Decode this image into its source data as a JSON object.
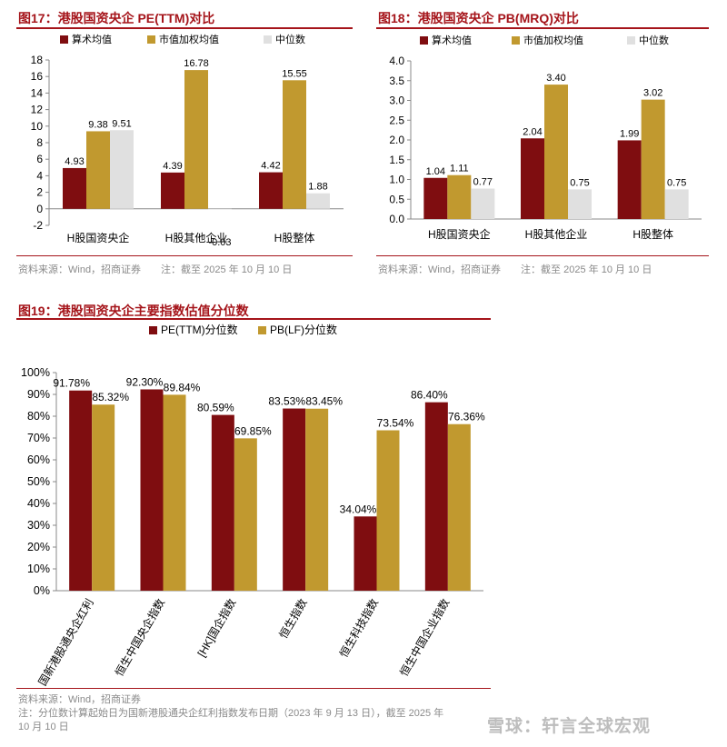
{
  "colors": {
    "accent": "#a5141a",
    "series1": "#7f0d10",
    "series2": "#c1992f",
    "series3": "#e0e0e0"
  },
  "fig17": {
    "title": "图17：港股国资央企 PE(TTM)对比",
    "source": "资料来源：Wind，招商证券　　注：截至 2025 年 10 月 10 日"
  },
  "fig18": {
    "title": "图18：港股国资央企 PB(MRQ)对比",
    "source": "资料来源：Wind，招商证券　　注：截至 2025 年 10 月 10 日"
  },
  "fig19": {
    "title": "图19：港股国资央企主要指数估值分位数",
    "source": "资料来源：Wind，招商证券",
    "note_line1": "注：分位数计算起始日为国新港股通央企红利指数发布日期（2023 年 9 月 13 日），截至 2025 年",
    "note_line2": "10 月 10 日"
  },
  "watermark": "雪球：轩言全球宏观",
  "chart_data": [
    {
      "type": "bar",
      "categories": [
        "H股国资央企",
        "H股其他企业",
        "H股整体"
      ],
      "series": [
        {
          "name": "算术均值",
          "values": [
            4.93,
            4.39,
            4.42
          ],
          "labels": [
            "4.93",
            "4.39",
            "4.42"
          ]
        },
        {
          "name": "市值加权均值",
          "values": [
            9.38,
            16.78,
            15.55
          ],
          "labels": [
            "9.38",
            "16.78",
            "15.55"
          ]
        },
        {
          "name": "中位数",
          "values": [
            9.51,
            -0.03,
            1.88
          ],
          "labels": [
            "9.51",
            "-0.03",
            "1.88"
          ]
        }
      ],
      "yticks": [
        "-2",
        "0",
        "2",
        "4",
        "6",
        "8",
        "10",
        "12",
        "14",
        "16",
        "18"
      ],
      "ylim": [
        -2,
        18
      ],
      "legend": "top",
      "grid": false
    },
    {
      "type": "bar",
      "categories": [
        "H股国资央企",
        "H股其他企业",
        "H股整体"
      ],
      "series": [
        {
          "name": "算术均值",
          "values": [
            1.04,
            2.04,
            1.99
          ],
          "labels": [
            "1.04",
            "2.04",
            "1.99"
          ]
        },
        {
          "name": "市值加权均值",
          "values": [
            1.11,
            3.4,
            3.02
          ],
          "labels": [
            "1.11",
            "3.40",
            "3.02"
          ]
        },
        {
          "name": "中位数",
          "values": [
            0.77,
            0.75,
            0.75
          ],
          "labels": [
            "0.77",
            "0.75",
            "0.75"
          ]
        }
      ],
      "yticks": [
        "0.0",
        "0.5",
        "1.0",
        "1.5",
        "2.0",
        "2.5",
        "3.0",
        "3.5",
        "4.0"
      ],
      "ylim": [
        0,
        4
      ],
      "legend": "top",
      "grid": false
    },
    {
      "type": "bar",
      "categories": [
        "国新港股通央企红利",
        "恒生中国央企指数",
        "[HK]国企指数",
        "恒生指数",
        "恒生科技指数",
        "恒生中国企业指数"
      ],
      "series": [
        {
          "name": "PE(TTM)分位数",
          "values": [
            91.78,
            92.3,
            80.59,
            83.53,
            34.04,
            86.4
          ],
          "labels": [
            "91.78%",
            "92.30%",
            "80.59%",
            "83.53%",
            "34.04%",
            "86.40%"
          ]
        },
        {
          "name": "PB(LF)分位数",
          "values": [
            85.32,
            89.84,
            69.85,
            83.45,
            73.54,
            76.36
          ],
          "labels": [
            "85.32%",
            "89.84%",
            "69.85%",
            "83.45%",
            "73.54%",
            "76.36%"
          ]
        }
      ],
      "yticks": [
        "0%",
        "10%",
        "20%",
        "30%",
        "40%",
        "50%",
        "60%",
        "70%",
        "80%",
        "90%",
        "100%"
      ],
      "ylim": [
        0,
        100
      ],
      "legend": "top-left",
      "grid": false
    }
  ]
}
